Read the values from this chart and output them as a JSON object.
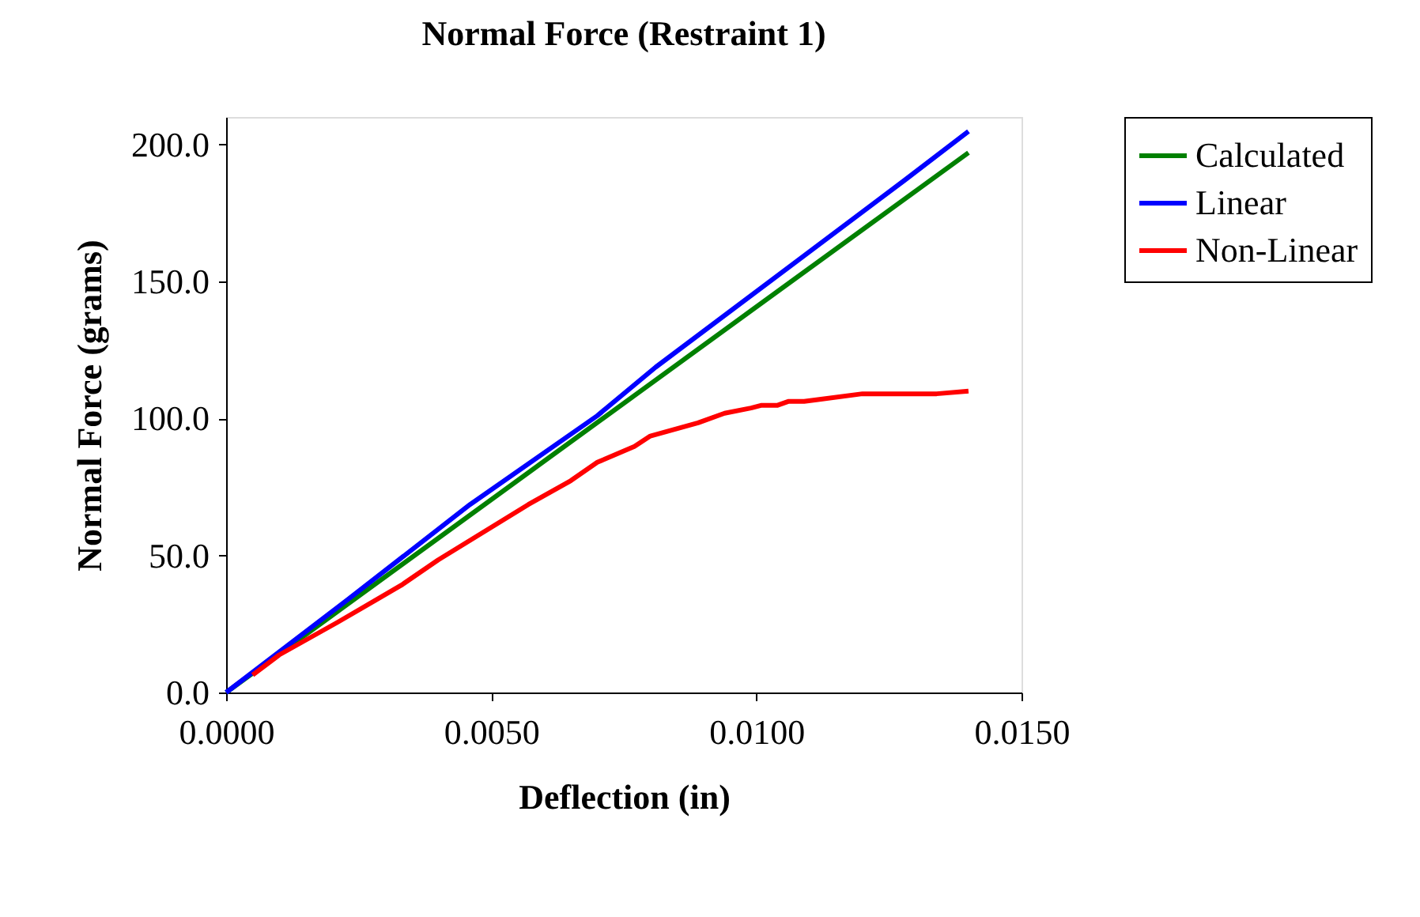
{
  "chart_data": {
    "type": "line",
    "title": "Normal Force (Restraint 1)",
    "xlabel": "Deflection (in)",
    "ylabel": "Normal Force (grams)",
    "xlim": [
      0,
      0.015
    ],
    "xticks": [
      {
        "value": 0,
        "label": "0.0000"
      },
      {
        "value": 0.005,
        "label": "0.0050"
      },
      {
        "value": 0.01,
        "label": "0.0100"
      },
      {
        "value": 0.015,
        "label": "0.0150"
      }
    ],
    "ylim": [
      0,
      210
    ],
    "yticks": [
      {
        "value": 0,
        "label": "0.0"
      },
      {
        "value": 50,
        "label": "50.0"
      },
      {
        "value": 100,
        "label": "100.0"
      },
      {
        "value": 150,
        "label": "150.0"
      },
      {
        "value": 200,
        "label": "200.0"
      }
    ],
    "grid": false,
    "legend": "right",
    "marker": "none",
    "line_style": "solid",
    "series": [
      {
        "name": "Calculated",
        "color": "#008000",
        "x": [
          0,
          0.014
        ],
        "values": [
          0,
          197
        ]
      },
      {
        "name": "Linear",
        "color": "#0000ff",
        "x": [
          0,
          0.0023,
          0.0046,
          0.007,
          0.0081,
          0.0128,
          0.014
        ],
        "values": [
          0,
          34,
          68.6,
          101,
          118.7,
          187,
          204.8
        ]
      },
      {
        "name": "Non-Linear",
        "color": "#ff0000",
        "x": [
          0.0005,
          0.001,
          0.0021,
          0.0033,
          0.004,
          0.0057,
          0.0065,
          0.007,
          0.0077,
          0.008,
          0.0089,
          0.0094,
          0.0099,
          0.0101,
          0.0104,
          0.0106,
          0.0109,
          0.012,
          0.0134,
          0.014
        ],
        "values": [
          6.4,
          13.7,
          25.6,
          39.1,
          48.4,
          68.6,
          77.3,
          84,
          89.8,
          93.6,
          98.4,
          101.9,
          103.8,
          104.8,
          104.8,
          106.2,
          106.2,
          109,
          109,
          110
        ]
      }
    ]
  }
}
